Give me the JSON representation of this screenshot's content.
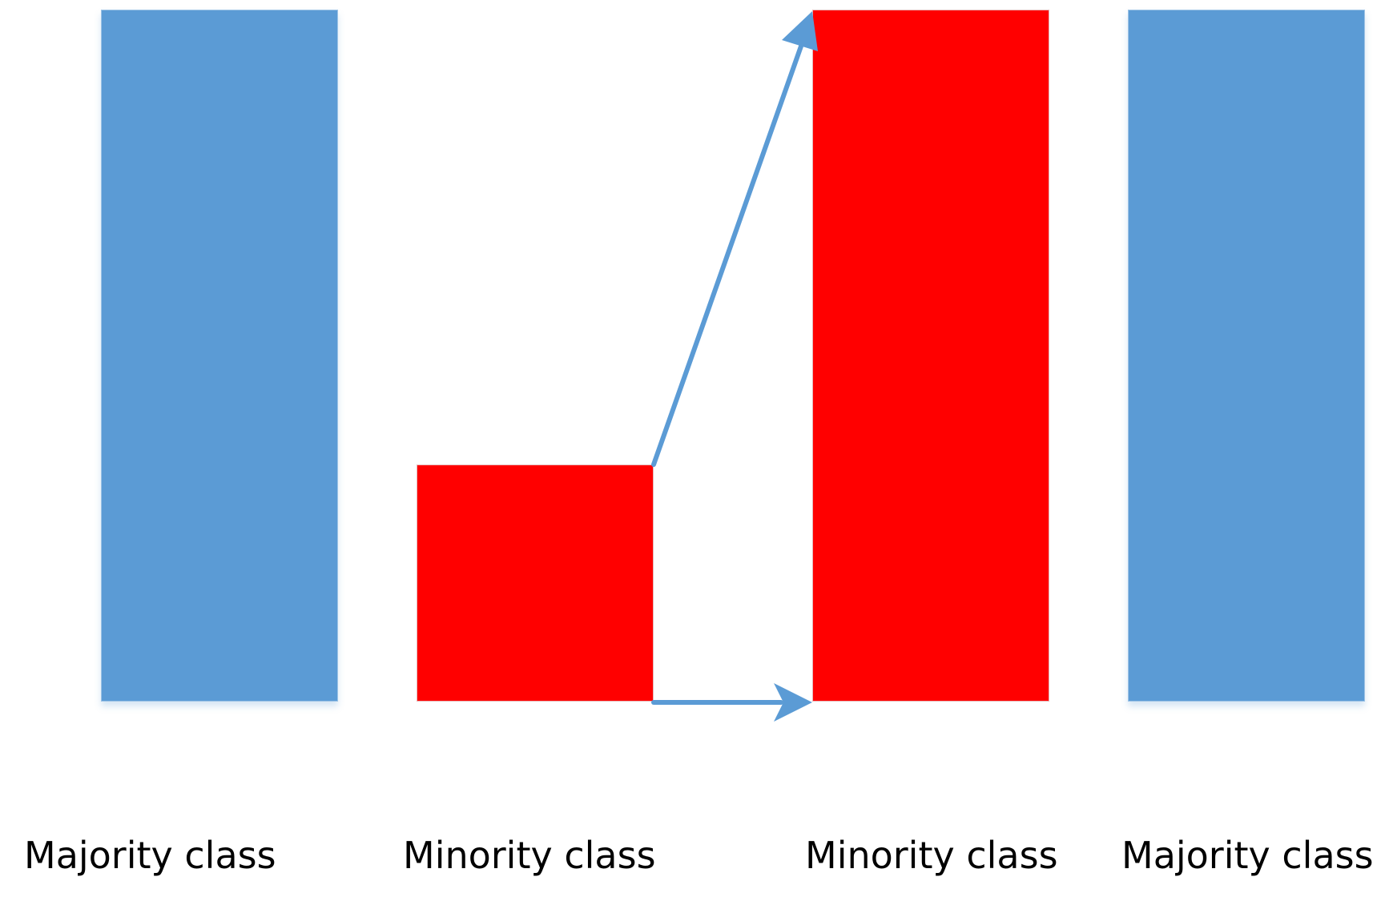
{
  "colors": {
    "majority": "#5b9bd5",
    "minority": "#ff0000",
    "arrow": "#5b9bd5"
  },
  "groups": [
    {
      "label": "Majority class",
      "class": "majority",
      "relative_size": 1.0
    },
    {
      "label": "Minority class",
      "class": "minority",
      "relative_size": 0.34
    },
    {
      "label": "Minority class",
      "class": "minority",
      "relative_size": 1.0
    },
    {
      "label": "Majority class",
      "class": "majority",
      "relative_size": 1.0
    }
  ],
  "arrows": [
    {
      "from": "minority-original",
      "to": "minority-oversampled",
      "meaning": "grow"
    },
    {
      "from": "minority-original",
      "to": "minority-oversampled",
      "meaning": "shift"
    }
  ]
}
